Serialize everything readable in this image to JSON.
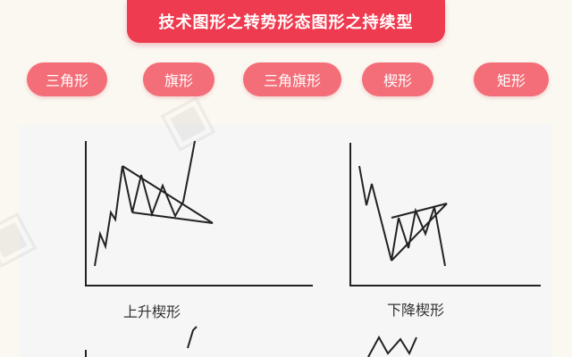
{
  "header": {
    "title": "技术图形之转势形态图形之持续型"
  },
  "tabs": [
    {
      "label": "三角形"
    },
    {
      "label": "旗形"
    },
    {
      "label": "三角旗形"
    },
    {
      "label": "楔形"
    },
    {
      "label": "矩形"
    }
  ],
  "patterns": [
    {
      "label": "上升楔形"
    },
    {
      "label": "下降楔形"
    }
  ],
  "colors": {
    "banner": "#ef3b4f",
    "tab": "#f36e78",
    "line": "#222222"
  }
}
